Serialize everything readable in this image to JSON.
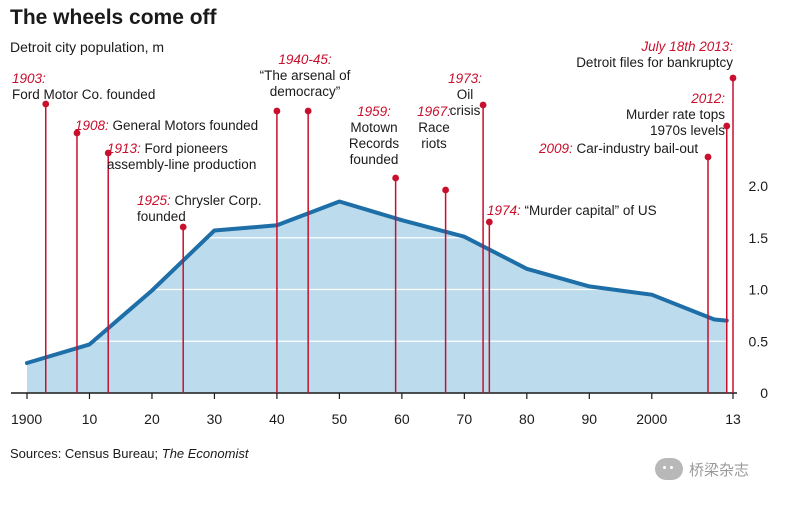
{
  "chart_data": {
    "type": "area",
    "title": "The wheels come off",
    "subtitle": "Detroit city population, m",
    "xlabel": "",
    "ylabel": "Detroit city population, m",
    "xlim": [
      1900,
      2013
    ],
    "ylim": [
      0,
      2.0
    ],
    "x_ticks": [
      {
        "year": 1900,
        "label": "1900"
      },
      {
        "year": 1910,
        "label": "10"
      },
      {
        "year": 1920,
        "label": "20"
      },
      {
        "year": 1930,
        "label": "30"
      },
      {
        "year": 1940,
        "label": "40"
      },
      {
        "year": 1950,
        "label": "50"
      },
      {
        "year": 1960,
        "label": "60"
      },
      {
        "year": 1970,
        "label": "70"
      },
      {
        "year": 1980,
        "label": "80"
      },
      {
        "year": 1990,
        "label": "90"
      },
      {
        "year": 2000,
        "label": "2000"
      },
      {
        "year": 2013,
        "label": "13"
      }
    ],
    "y_ticks": [
      {
        "value": 0,
        "label": "0"
      },
      {
        "value": 0.5,
        "label": "0.5"
      },
      {
        "value": 1.0,
        "label": "1.0"
      },
      {
        "value": 1.5,
        "label": "1.5"
      },
      {
        "value": 2.0,
        "label": "2.0"
      }
    ],
    "series": [
      {
        "name": "Detroit city population",
        "points": [
          {
            "x": 1900,
            "y": 0.29
          },
          {
            "x": 1910,
            "y": 0.47
          },
          {
            "x": 1920,
            "y": 0.99
          },
          {
            "x": 1930,
            "y": 1.57
          },
          {
            "x": 1940,
            "y": 1.62
          },
          {
            "x": 1950,
            "y": 1.85
          },
          {
            "x": 1960,
            "y": 1.67
          },
          {
            "x": 1970,
            "y": 1.51
          },
          {
            "x": 1980,
            "y": 1.2
          },
          {
            "x": 1990,
            "y": 1.03
          },
          {
            "x": 2000,
            "y": 0.95
          },
          {
            "x": 2010,
            "y": 0.71
          },
          {
            "x": 2012,
            "y": 0.7
          }
        ]
      }
    ],
    "annotations": [
      {
        "year": 1903,
        "date": "1903:",
        "lines": [
          "Ford Motor Co. founded"
        ]
      },
      {
        "year": 1908,
        "date": "1908:",
        "lines": [
          "General Motors founded"
        ]
      },
      {
        "year": 1913,
        "date": "1913:",
        "lines": [
          "Ford pioneers",
          "assembly-line production"
        ]
      },
      {
        "year": 1925,
        "date": "1925:",
        "lines": [
          "Chrysler Corp.",
          "founded"
        ]
      },
      {
        "year": 1940,
        "date": "1940-45:",
        "lines": [
          "“The arsenal of",
          "democracy”"
        ]
      },
      {
        "year": 1945,
        "date": "",
        "lines": []
      },
      {
        "year": 1959,
        "date": "1959:",
        "lines": [
          "Motown",
          "Records",
          "founded"
        ]
      },
      {
        "year": 1967,
        "date": "1967:",
        "lines": [
          "Race",
          "riots"
        ]
      },
      {
        "year": 1973,
        "date": "1973:",
        "lines": [
          "Oil",
          "crisis"
        ]
      },
      {
        "year": 1974,
        "date": "1974:",
        "lines": [
          "“Murder capital” of US"
        ]
      },
      {
        "year": 2009,
        "date": "2009:",
        "lines": [
          "Car-industry bail-out"
        ]
      },
      {
        "year": 2012,
        "date": "2012:",
        "lines": [
          "Murder rate tops",
          "1970s levels"
        ]
      },
      {
        "year": 2013,
        "date": "July 18th 2013:",
        "lines": [
          "Detroit files for bankruptcy"
        ]
      }
    ],
    "source": {
      "prefix": "Sources: Census Bureau; ",
      "italic": "The Economist"
    }
  },
  "colors": {
    "fill": "#bcdced",
    "line": "#1e6ea8",
    "marker": "#c8102e",
    "marker_text": "#c8102e",
    "text": "#1a1a1a",
    "grid": "#ffffff",
    "axis": "#1a1a1a"
  },
  "watermark": {
    "icon": "wechat-icon",
    "text": "桥梁杂志"
  }
}
